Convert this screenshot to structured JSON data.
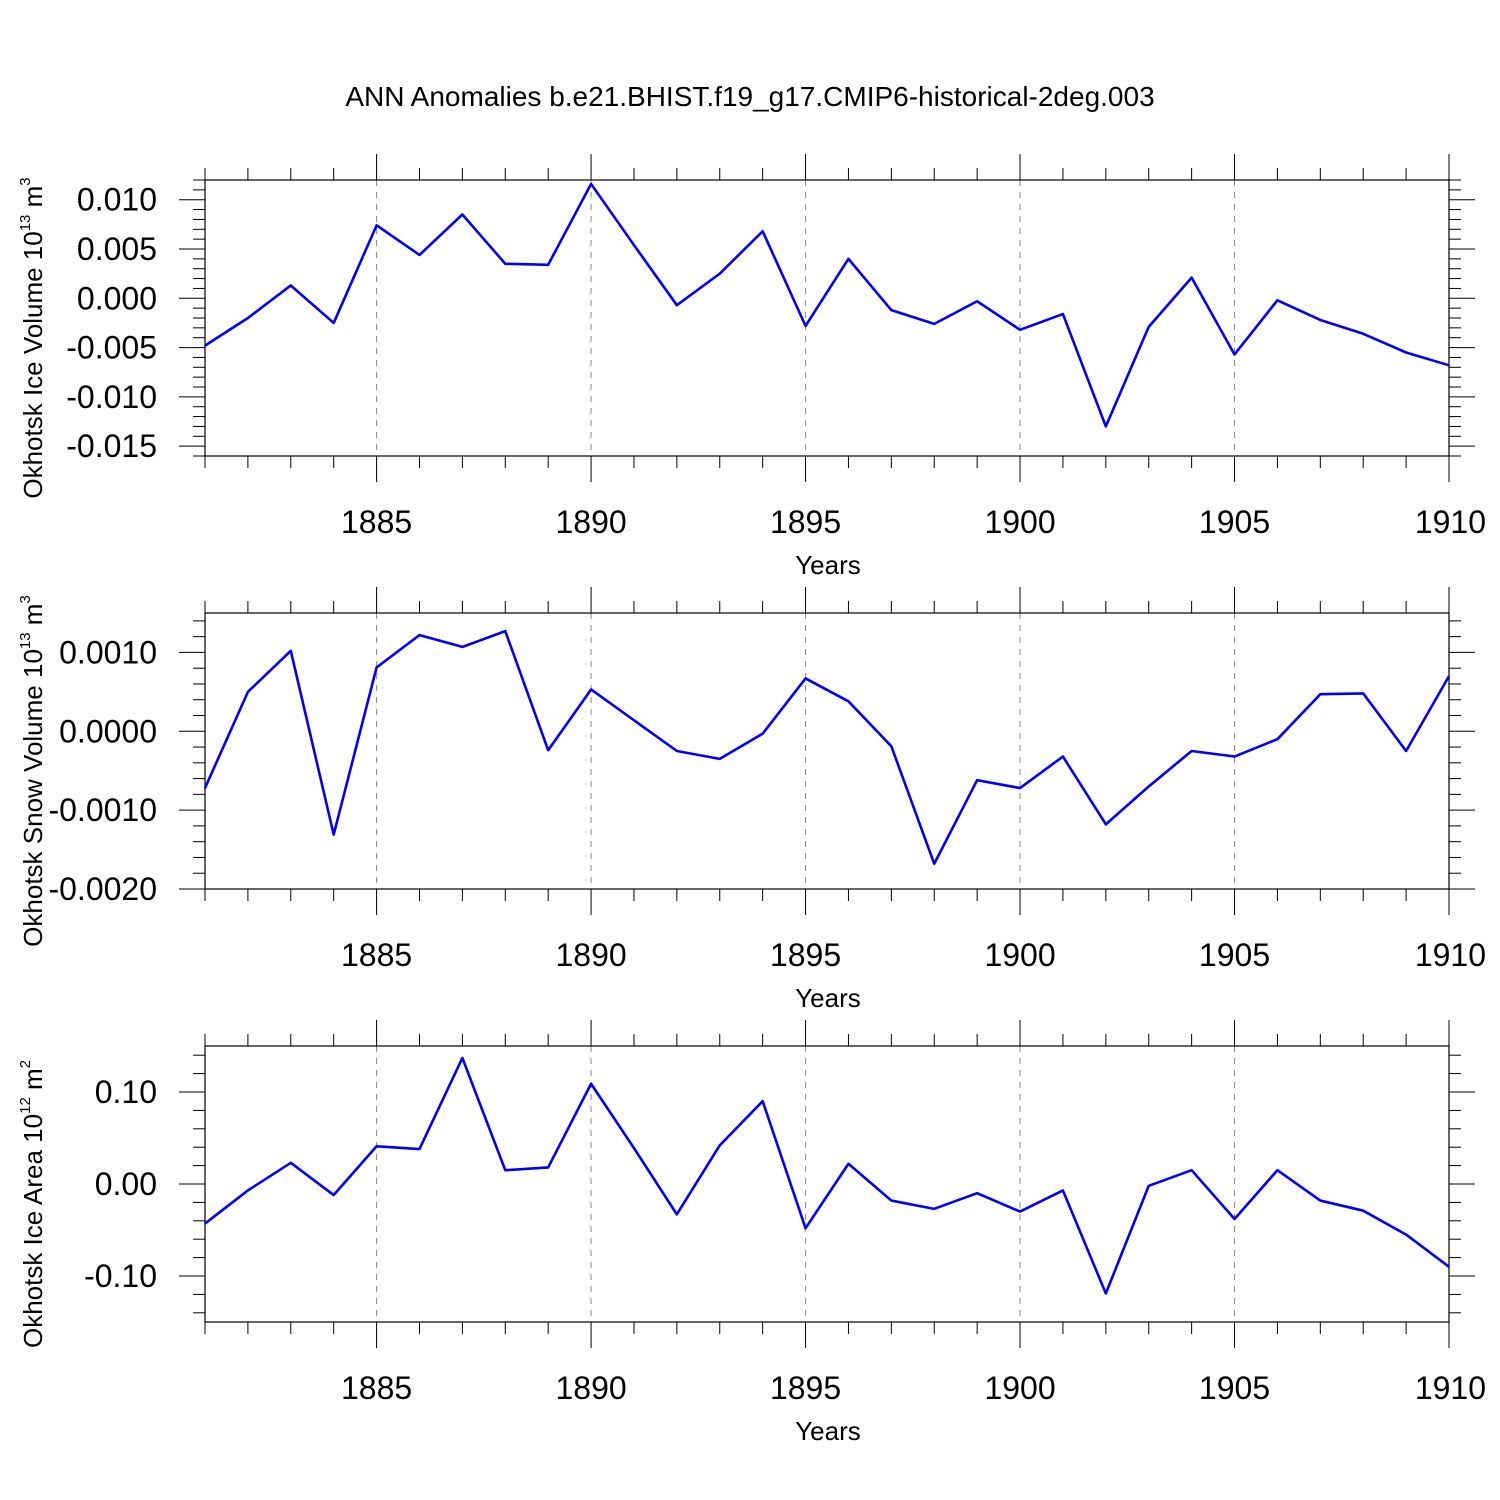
{
  "figure": {
    "title": "ANN Anomalies b.e21.BHIST.f19_g17.CMIP6-historical-2deg.003",
    "line_color": "#0000ff",
    "grid_color": "#888888"
  },
  "chart_data": [
    {
      "type": "line",
      "ylabel": {
        "base": "Okhotsk Ice Volume 10",
        "exp": "13",
        "unit": " m",
        "unit_exp": "3"
      },
      "xlabel": "Years",
      "xlim": [
        1881,
        1910
      ],
      "ylim": [
        -0.016,
        0.012
      ],
      "yticks": [
        0.01,
        0.005,
        0.0,
        -0.005,
        -0.01,
        -0.015
      ],
      "ytick_labels": [
        "0.010",
        "0.005",
        "0.000",
        "-0.005",
        "-0.010",
        "-0.015"
      ],
      "xticks": [
        1885,
        1890,
        1895,
        1900,
        1905,
        1910
      ],
      "xtick_labels": [
        "1885",
        "1890",
        "1895",
        "1900",
        "1905",
        "1910"
      ],
      "grid": "vertical dashed at major x ticks",
      "series": [
        {
          "x": [
            1881,
            1882,
            1883,
            1884,
            1885,
            1886,
            1887,
            1888,
            1889,
            1890,
            1891,
            1892,
            1893,
            1894,
            1895,
            1896,
            1897,
            1898,
            1899,
            1900,
            1901,
            1902,
            1903,
            1904,
            1905,
            1906,
            1907,
            1908,
            1909,
            1910
          ],
          "values": [
            -0.0048,
            -0.002,
            0.0013,
            -0.0025,
            0.0074,
            0.0044,
            0.0085,
            0.0035,
            0.0034,
            0.0116,
            0.0054,
            -0.0007,
            0.0025,
            0.0068,
            -0.0028,
            0.004,
            -0.0012,
            -0.0026,
            -0.0003,
            -0.0032,
            -0.0016,
            -0.013,
            -0.0029,
            0.0021,
            -0.0057,
            -0.0002,
            -0.0022,
            -0.0036,
            -0.0055,
            -0.0068
          ]
        }
      ]
    },
    {
      "type": "line",
      "ylabel": {
        "base": "Okhotsk Snow Volume 10",
        "exp": "13",
        "unit": " m",
        "unit_exp": "3"
      },
      "xlabel": "Years",
      "xlim": [
        1881,
        1910
      ],
      "ylim": [
        -0.002,
        0.0015
      ],
      "yticks": [
        0.001,
        0.0,
        -0.001,
        -0.002
      ],
      "ytick_labels": [
        "0.0010",
        "0.0000",
        "-0.0010",
        "-0.0020"
      ],
      "xticks": [
        1885,
        1890,
        1895,
        1900,
        1905,
        1910
      ],
      "xtick_labels": [
        "1885",
        "1890",
        "1895",
        "1900",
        "1905",
        "1910"
      ],
      "grid": "vertical dashed at major x ticks",
      "series": [
        {
          "x": [
            1881,
            1882,
            1883,
            1884,
            1885,
            1886,
            1887,
            1888,
            1889,
            1890,
            1891,
            1892,
            1893,
            1894,
            1895,
            1896,
            1897,
            1898,
            1899,
            1900,
            1901,
            1902,
            1903,
            1904,
            1905,
            1906,
            1907,
            1908,
            1909,
            1910
          ],
          "values": [
            -0.00072,
            0.0005,
            0.00102,
            -0.00131,
            0.00081,
            0.00122,
            0.00107,
            0.00127,
            -0.00024,
            0.00053,
            0.00014,
            -0.00025,
            -0.00035,
            -3e-05,
            0.00067,
            0.00038,
            -0.00019,
            -0.00168,
            -0.00062,
            -0.00072,
            -0.00032,
            -0.00118,
            -0.0007,
            -0.00025,
            -0.00032,
            -0.0001,
            0.00047,
            0.00048,
            -0.00025,
            0.0007
          ]
        }
      ]
    },
    {
      "type": "line",
      "ylabel": {
        "base": "Okhotsk Ice Area 10",
        "exp": "12",
        "unit": " m",
        "unit_exp": "2"
      },
      "xlabel": "Years",
      "xlim": [
        1881,
        1910
      ],
      "ylim": [
        -0.15,
        0.15
      ],
      "yticks": [
        0.1,
        0.0,
        -0.1
      ],
      "ytick_labels": [
        "0.10",
        "0.00",
        "-0.10"
      ],
      "xticks": [
        1885,
        1890,
        1895,
        1900,
        1905,
        1910
      ],
      "xtick_labels": [
        "1885",
        "1890",
        "1895",
        "1900",
        "1905",
        "1910"
      ],
      "grid": "vertical dashed at major x ticks",
      "series": [
        {
          "x": [
            1881,
            1882,
            1883,
            1884,
            1885,
            1886,
            1887,
            1888,
            1889,
            1890,
            1891,
            1892,
            1893,
            1894,
            1895,
            1896,
            1897,
            1898,
            1899,
            1900,
            1901,
            1902,
            1903,
            1904,
            1905,
            1906,
            1907,
            1908,
            1909,
            1910
          ],
          "values": [
            -0.043,
            -0.007,
            0.023,
            -0.012,
            0.041,
            0.038,
            0.137,
            0.015,
            0.018,
            0.109,
            0.039,
            -0.033,
            0.042,
            0.09,
            -0.048,
            0.022,
            -0.018,
            -0.027,
            -0.01,
            -0.03,
            -0.007,
            -0.119,
            -0.002,
            0.015,
            -0.038,
            0.015,
            -0.018,
            -0.029,
            -0.055,
            -0.09
          ]
        }
      ]
    }
  ]
}
